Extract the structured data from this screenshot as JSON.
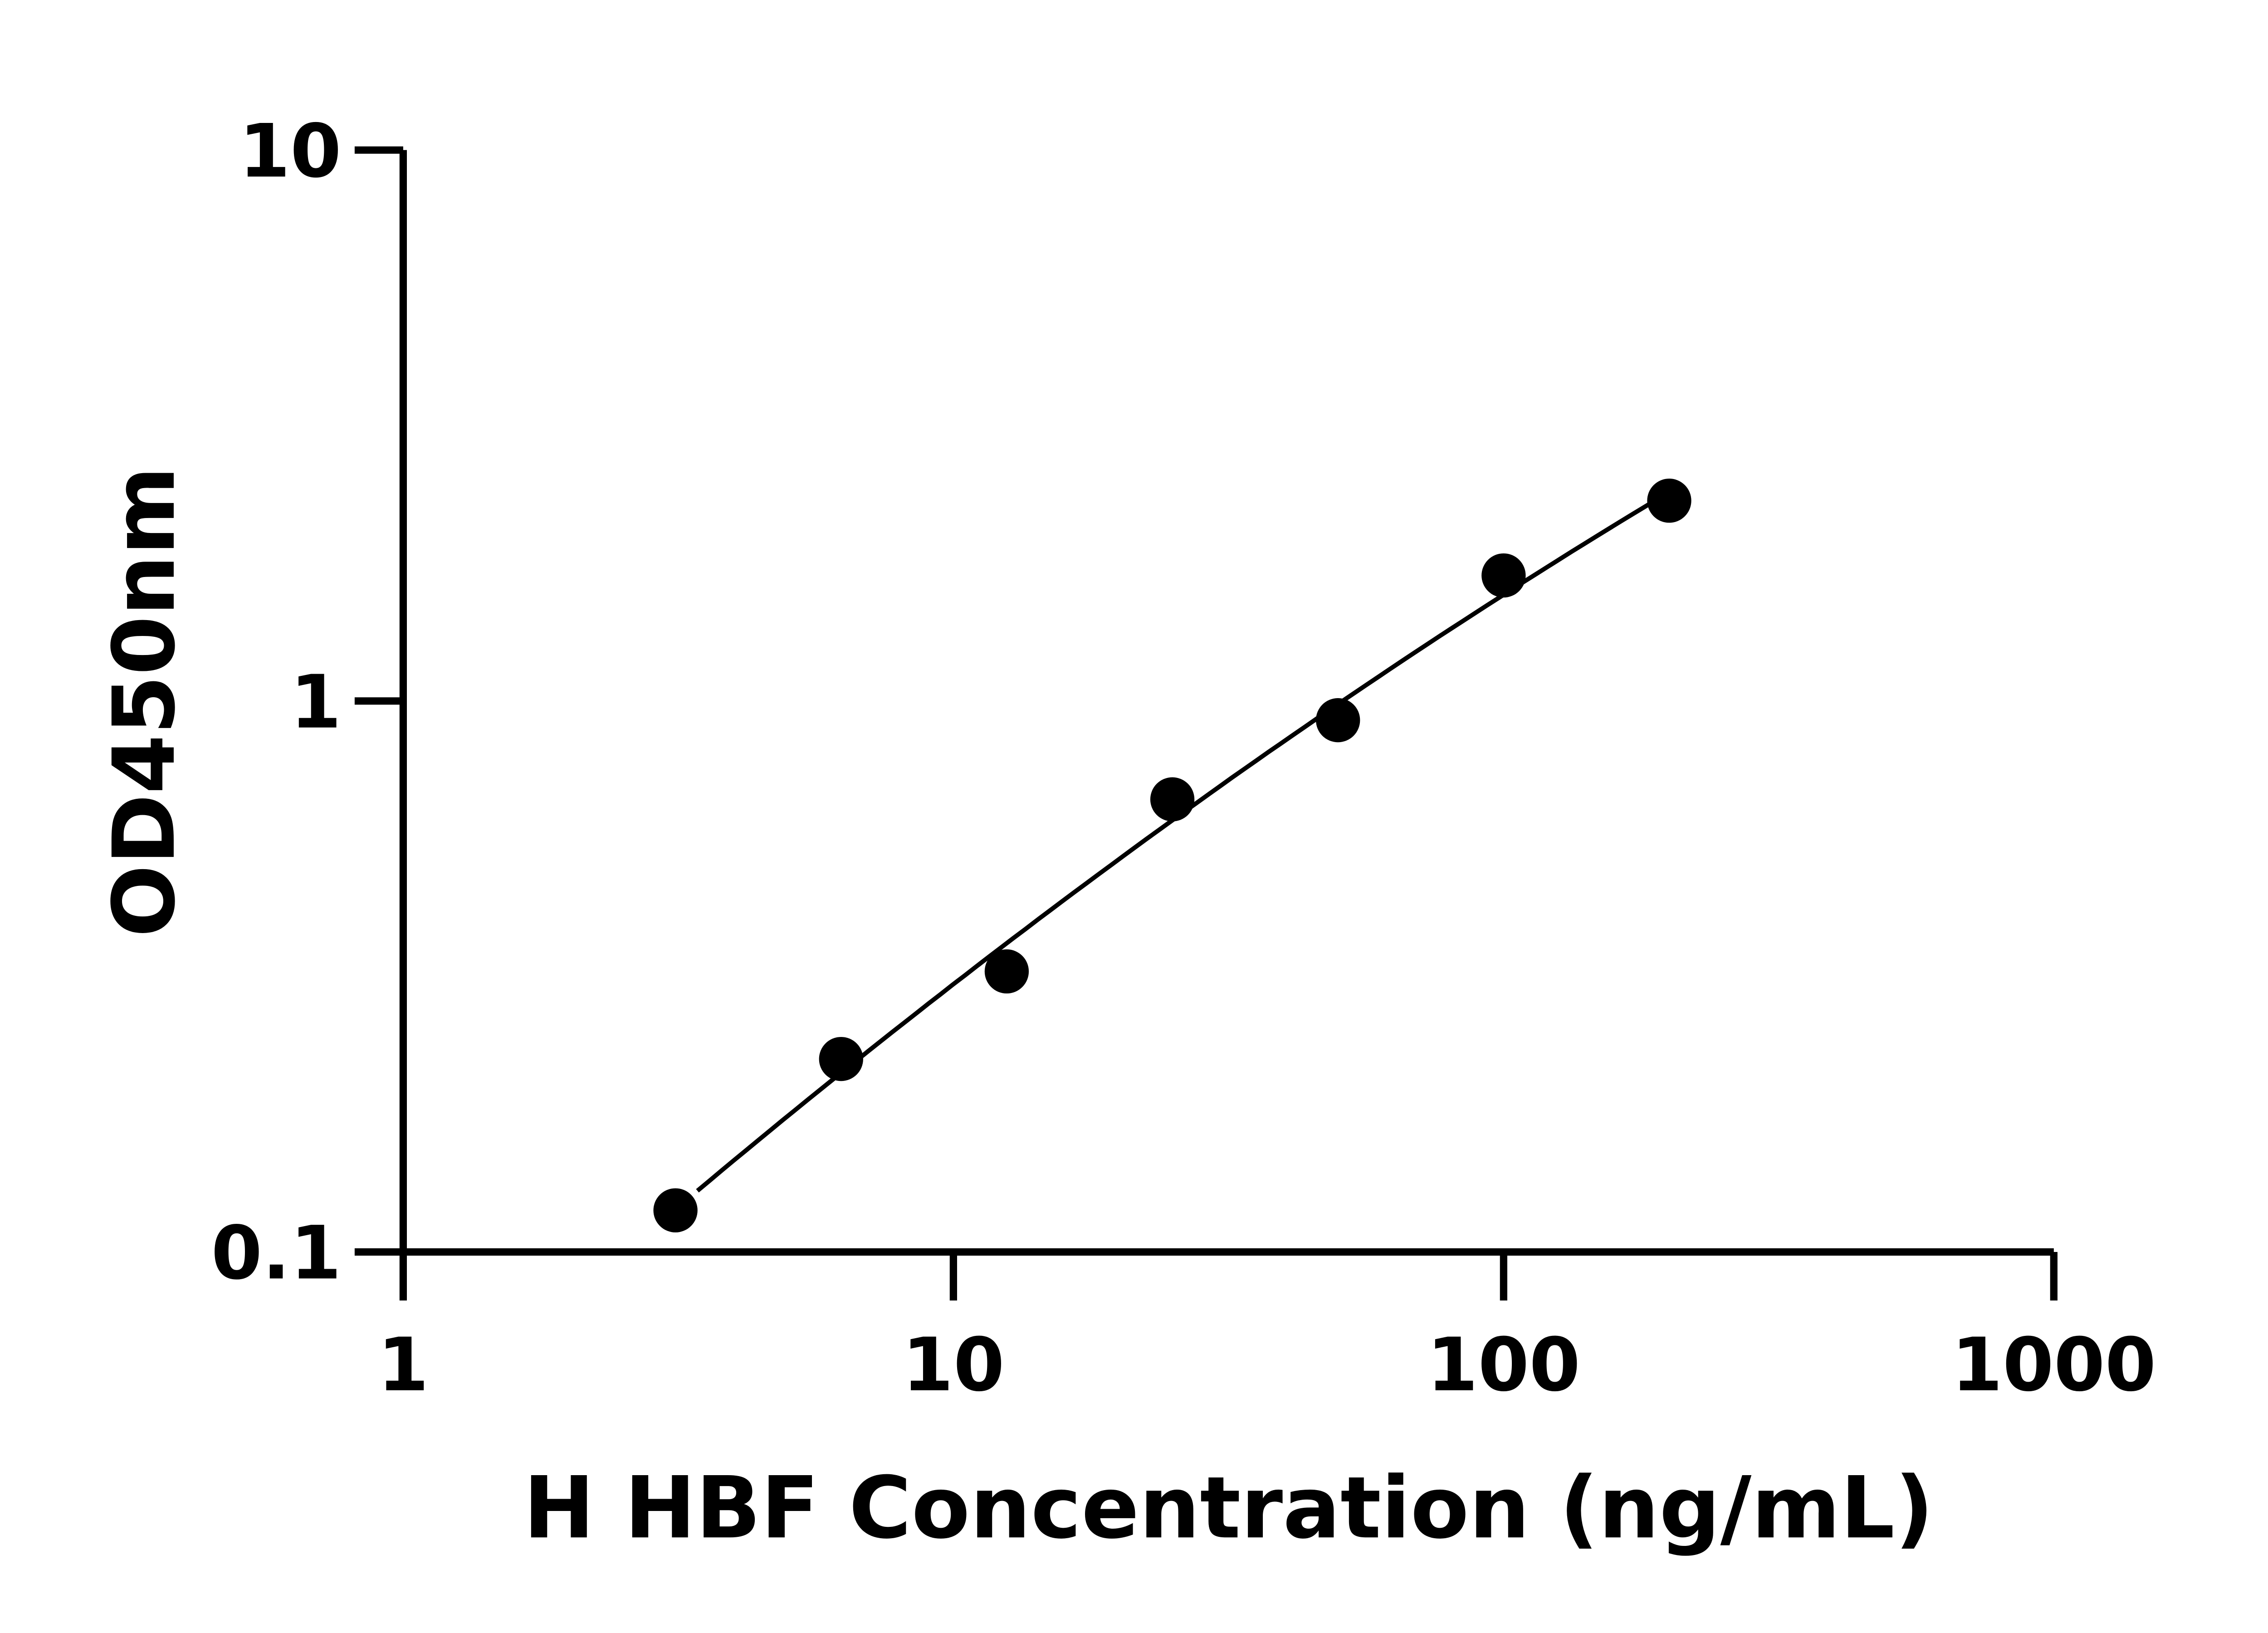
{
  "chart_data": {
    "type": "scatter",
    "title": "",
    "xlabel": "H HBF Concentration (ng/mL)",
    "ylabel": "OD450nm",
    "x_scale": "log",
    "y_scale": "log",
    "xlim": [
      1,
      1000
    ],
    "ylim": [
      0.1,
      10
    ],
    "x_ticks": [
      "1",
      "10",
      "100",
      "1000"
    ],
    "y_ticks": [
      "0.1",
      "1",
      "10"
    ],
    "grid": false,
    "legend": "none",
    "series": [
      {
        "x": [
          3.125,
          6.25,
          12.5,
          25,
          50,
          100,
          200
        ],
        "y": [
          0.119,
          0.224,
          0.323,
          0.663,
          0.923,
          1.69,
          2.31
        ],
        "marker": "circle",
        "color": "#000000",
        "fit_curve": true
      }
    ]
  }
}
